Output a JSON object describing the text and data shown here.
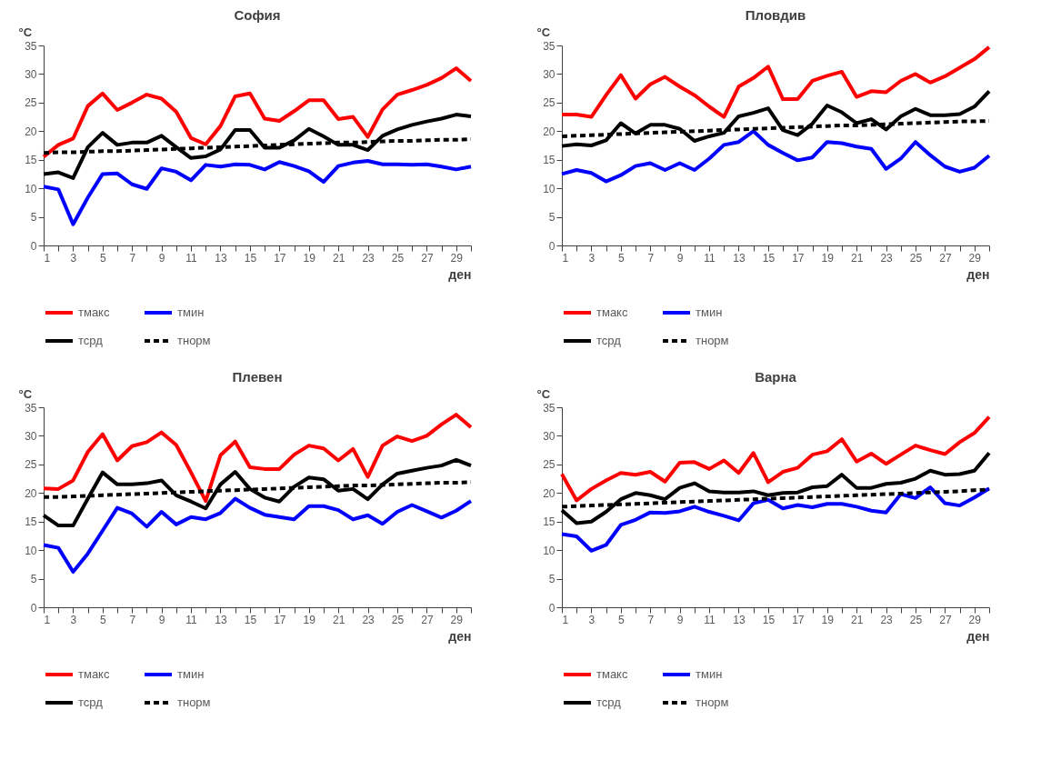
{
  "chart_data": [
    {
      "type": "line",
      "title": "София",
      "xlabel": "ден",
      "ylabel": "°C",
      "legend": "bottom",
      "x": [
        1,
        2,
        3,
        4,
        5,
        6,
        7,
        8,
        9,
        10,
        11,
        12,
        13,
        14,
        15,
        16,
        17,
        18,
        19,
        20,
        21,
        22,
        23,
        24,
        25,
        26,
        27,
        28,
        29,
        30
      ],
      "xlim": [
        1,
        30
      ],
      "xticks": [
        1,
        {
          "value": 2,
          "label": null
        },
        3,
        {
          "value": 4,
          "label": null
        },
        5,
        {
          "value": 6,
          "label": null
        },
        7,
        {
          "value": 8,
          "label": null
        },
        9,
        {
          "value": 10,
          "label": null
        },
        11,
        {
          "value": 12,
          "label": null
        },
        13,
        {
          "value": 14,
          "label": null
        },
        15,
        {
          "value": 16,
          "label": null
        },
        17,
        {
          "value": 18,
          "label": null
        },
        19,
        {
          "value": 20,
          "label": null
        },
        21,
        {
          "value": 22,
          "label": null
        },
        23,
        {
          "value": 24,
          "label": null
        },
        25,
        {
          "value": 26,
          "label": null
        },
        27,
        {
          "value": 28,
          "label": null
        },
        29,
        {
          "value": 30,
          "label": null
        }
      ],
      "ylim": [
        0,
        35
      ],
      "yticks": [
        0,
        5,
        10,
        15,
        20,
        25,
        30,
        35
      ],
      "series": [
        {
          "name": "тмакс",
          "color": "#ff0000",
          "line_style": "solid",
          "values": [
            15.5,
            17.6,
            18.7,
            24.4,
            26.6,
            23.7,
            25,
            26.4,
            25.7,
            23.4,
            18.8,
            17.7,
            20.9,
            26.1,
            26.6,
            22.2,
            21.8,
            23.5,
            25.4,
            25.4,
            22.1,
            22.5,
            19,
            23.8,
            26.4,
            27.2,
            28.1,
            29.3,
            31,
            28.8
          ]
        },
        {
          "name": "тмин",
          "color": "#0000ff",
          "line_style": "solid",
          "values": [
            10.3,
            9.8,
            3.7,
            8.4,
            12.5,
            12.6,
            10.7,
            9.9,
            13.5,
            12.9,
            11.4,
            14.1,
            13.8,
            14.2,
            14.1,
            13.3,
            14.6,
            13.9,
            13,
            11.1,
            13.9,
            14.5,
            14.8,
            14.2,
            14.2,
            14.1,
            14.2,
            13.8,
            13.3,
            13.8
          ]
        },
        {
          "name": "тсрд",
          "color": "#000000",
          "line_style": "solid",
          "values": [
            12.5,
            12.8,
            11.8,
            17.2,
            19.7,
            17.6,
            18,
            18,
            19.2,
            17.2,
            15.3,
            15.6,
            16.8,
            20.2,
            20.2,
            17.1,
            17.1,
            18.4,
            20.4,
            19.1,
            17.6,
            17.6,
            16.7,
            19.2,
            20.3,
            21.1,
            21.7,
            22.2,
            22.9,
            22.6
          ]
        },
        {
          "name": "тнорм",
          "color": "#000000",
          "line_style": "dashed",
          "values": [
            16.2,
            16.3,
            16.3,
            16.4,
            16.5,
            16.5,
            16.6,
            16.7,
            16.8,
            16.9,
            17,
            17.1,
            17.2,
            17.3,
            17.4,
            17.5,
            17.6,
            17.7,
            17.8,
            17.9,
            18,
            18,
            18.1,
            18.2,
            18.3,
            18.3,
            18.4,
            18.5,
            18.5,
            18.6
          ]
        }
      ]
    },
    {
      "type": "line",
      "title": "Пловдив",
      "xlabel": "ден",
      "ylabel": "°C",
      "legend": "bottom",
      "x": [
        1,
        2,
        3,
        4,
        5,
        6,
        7,
        8,
        9,
        10,
        11,
        12,
        13,
        14,
        15,
        16,
        17,
        18,
        19,
        20,
        21,
        22,
        23,
        24,
        25,
        26,
        27,
        28,
        29,
        30
      ],
      "xlim": [
        1,
        30
      ],
      "xticks": [
        1,
        {
          "value": 2,
          "label": null
        },
        3,
        {
          "value": 4,
          "label": null
        },
        5,
        {
          "value": 6,
          "label": null
        },
        7,
        {
          "value": 8,
          "label": null
        },
        9,
        {
          "value": 10,
          "label": null
        },
        11,
        {
          "value": 12,
          "label": null
        },
        13,
        {
          "value": 14,
          "label": null
        },
        15,
        {
          "value": 16,
          "label": null
        },
        17,
        {
          "value": 18,
          "label": null
        },
        19,
        {
          "value": 20,
          "label": null
        },
        21,
        {
          "value": 22,
          "label": null
        },
        23,
        {
          "value": 24,
          "label": null
        },
        25,
        {
          "value": 26,
          "label": null
        },
        27,
        {
          "value": 28,
          "label": null
        },
        29,
        {
          "value": 30,
          "label": null
        }
      ],
      "ylim": [
        0,
        35
      ],
      "yticks": [
        0,
        5,
        10,
        15,
        20,
        25,
        30,
        35
      ],
      "series": [
        {
          "name": "тмакс",
          "color": "#ff0000",
          "line_style": "solid",
          "values": [
            22.9,
            22.9,
            22.5,
            26.3,
            29.8,
            25.7,
            28.2,
            29.5,
            27.8,
            26.3,
            24.3,
            22.5,
            27.8,
            29.3,
            31.3,
            25.6,
            25.6,
            28.8,
            29.7,
            30.4,
            26,
            27,
            26.8,
            28.8,
            30,
            28.5,
            29.6,
            31.1,
            32.6,
            34.7
          ]
        },
        {
          "name": "тмин",
          "color": "#0000ff",
          "line_style": "solid",
          "values": [
            12.5,
            13.2,
            12.7,
            11.2,
            12.3,
            13.9,
            14.4,
            13.2,
            14.4,
            13.2,
            15.2,
            17.6,
            18.1,
            20,
            17.6,
            16.2,
            14.9,
            15.4,
            18.1,
            17.9,
            17.3,
            16.9,
            13.4,
            15.2,
            18.1,
            15.8,
            13.8,
            12.9,
            13.6,
            15.7
          ]
        },
        {
          "name": "тсрд",
          "color": "#000000",
          "line_style": "solid",
          "values": [
            17.4,
            17.7,
            17.5,
            18.4,
            21.4,
            19.6,
            21.1,
            21.1,
            20.4,
            18.3,
            19.1,
            19.7,
            22.6,
            23.2,
            24,
            20.2,
            19.3,
            21.3,
            24.5,
            23.3,
            21.4,
            22.1,
            20.3,
            22.6,
            23.9,
            22.8,
            22.8,
            23,
            24.3,
            27
          ]
        },
        {
          "name": "тнорм",
          "color": "#000000",
          "line_style": "dashed",
          "values": [
            19.1,
            19.2,
            19.3,
            19.4,
            19.5,
            19.6,
            19.7,
            19.8,
            19.9,
            20,
            20.1,
            20.2,
            20.3,
            20.4,
            20.5,
            20.6,
            20.7,
            20.8,
            20.9,
            21,
            21,
            21.1,
            21.2,
            21.3,
            21.4,
            21.5,
            21.6,
            21.7,
            21.7,
            21.8
          ]
        }
      ]
    },
    {
      "type": "line",
      "title": "Плевен",
      "xlabel": "ден",
      "ylabel": "°C",
      "legend": "bottom",
      "x": [
        1,
        2,
        3,
        4,
        5,
        6,
        7,
        8,
        9,
        10,
        11,
        12,
        13,
        14,
        15,
        16,
        17,
        18,
        19,
        20,
        21,
        22,
        23,
        24,
        25,
        26,
        27,
        28,
        29,
        30
      ],
      "xlim": [
        1,
        30
      ],
      "xticks": [
        1,
        {
          "value": 2,
          "label": null
        },
        3,
        {
          "value": 4,
          "label": null
        },
        5,
        {
          "value": 6,
          "label": null
        },
        7,
        {
          "value": 8,
          "label": null
        },
        9,
        {
          "value": 10,
          "label": null
        },
        11,
        {
          "value": 12,
          "label": null
        },
        13,
        {
          "value": 14,
          "label": null
        },
        15,
        {
          "value": 16,
          "label": null
        },
        17,
        {
          "value": 18,
          "label": null
        },
        19,
        {
          "value": 20,
          "label": null
        },
        21,
        {
          "value": 22,
          "label": null
        },
        23,
        {
          "value": 24,
          "label": null
        },
        25,
        {
          "value": 26,
          "label": null
        },
        27,
        {
          "value": 28,
          "label": null
        },
        29,
        {
          "value": 30,
          "label": null
        }
      ],
      "ylim": [
        0,
        35
      ],
      "yticks": [
        0,
        5,
        10,
        15,
        20,
        25,
        30,
        35
      ],
      "series": [
        {
          "name": "тмакс",
          "color": "#ff0000",
          "line_style": "solid",
          "values": [
            20.8,
            20.7,
            22.2,
            27.2,
            30.3,
            25.7,
            28.2,
            28.9,
            30.6,
            28.4,
            23.6,
            18.6,
            26.6,
            29,
            24.5,
            24.2,
            24.2,
            26.7,
            28.3,
            27.8,
            25.7,
            27.7,
            22.8,
            28.3,
            29.9,
            29.1,
            30,
            32,
            33.7,
            31.5
          ]
        },
        {
          "name": "тмин",
          "color": "#0000ff",
          "line_style": "solid",
          "values": [
            10.9,
            10.4,
            6.2,
            9.4,
            13.4,
            17.4,
            16.4,
            14.1,
            16.7,
            14.5,
            15.8,
            15.4,
            16.5,
            19,
            17.4,
            16.2,
            15.8,
            15.4,
            17.7,
            17.7,
            17,
            15.4,
            16.1,
            14.6,
            16.7,
            17.9,
            16.8,
            15.7,
            16.9,
            18.6
          ]
        },
        {
          "name": "тсрд",
          "color": "#000000",
          "line_style": "solid",
          "values": [
            16.1,
            14.3,
            14.3,
            19,
            23.6,
            21.5,
            21.5,
            21.7,
            22.2,
            19.6,
            18.5,
            17.3,
            21.5,
            23.7,
            20.7,
            19.2,
            18.5,
            21.1,
            22.7,
            22.4,
            20.4,
            20.7,
            18.9,
            21.5,
            23.4,
            23.9,
            24.4,
            24.8,
            25.8,
            24.8
          ]
        },
        {
          "name": "тнорм",
          "color": "#000000",
          "line_style": "dashed",
          "values": [
            19.3,
            19.3,
            19.4,
            19.5,
            19.6,
            19.7,
            19.8,
            19.9,
            20,
            20.1,
            20.2,
            20.3,
            20.4,
            20.5,
            20.6,
            20.7,
            20.8,
            20.9,
            21,
            21.1,
            21.2,
            21.3,
            21.3,
            21.4,
            21.5,
            21.6,
            21.7,
            21.8,
            21.8,
            21.9
          ]
        }
      ]
    },
    {
      "type": "line",
      "title": "Варна",
      "xlabel": "ден",
      "ylabel": "°C",
      "legend": "bottom",
      "x": [
        1,
        2,
        3,
        4,
        5,
        6,
        7,
        8,
        9,
        10,
        11,
        12,
        13,
        14,
        15,
        16,
        17,
        18,
        19,
        20,
        21,
        22,
        23,
        24,
        25,
        26,
        27,
        28,
        29,
        30
      ],
      "xlim": [
        1,
        30
      ],
      "xticks": [
        1,
        {
          "value": 2,
          "label": null
        },
        3,
        {
          "value": 4,
          "label": null
        },
        5,
        {
          "value": 6,
          "label": null
        },
        7,
        {
          "value": 8,
          "label": null
        },
        9,
        {
          "value": 10,
          "label": null
        },
        11,
        {
          "value": 12,
          "label": null
        },
        13,
        {
          "value": 14,
          "label": null
        },
        15,
        {
          "value": 16,
          "label": null
        },
        17,
        {
          "value": 18,
          "label": null
        },
        19,
        {
          "value": 20,
          "label": null
        },
        21,
        {
          "value": 22,
          "label": null
        },
        23,
        {
          "value": 24,
          "label": null
        },
        25,
        {
          "value": 26,
          "label": null
        },
        27,
        {
          "value": 28,
          "label": null
        },
        29,
        {
          "value": 30,
          "label": null
        }
      ],
      "ylim": [
        0,
        35
      ],
      "yticks": [
        0,
        5,
        10,
        15,
        20,
        25,
        30,
        35
      ],
      "series": [
        {
          "name": "тмакс",
          "color": "#ff0000",
          "line_style": "solid",
          "values": [
            23.3,
            18.7,
            20.7,
            22.2,
            23.5,
            23.2,
            23.7,
            22,
            25.3,
            25.4,
            24.2,
            25.7,
            23.5,
            27,
            21.9,
            23.7,
            24.4,
            26.7,
            27.3,
            29.4,
            25.5,
            26.9,
            25.1,
            26.7,
            28.3,
            27.5,
            26.8,
            28.9,
            30.5,
            33.3
          ]
        },
        {
          "name": "тмин",
          "color": "#0000ff",
          "line_style": "solid",
          "values": [
            12.8,
            12.4,
            9.9,
            10.9,
            14.4,
            15.3,
            16.6,
            16.5,
            16.8,
            17.6,
            16.7,
            16,
            15.2,
            18.2,
            18.8,
            17.3,
            17.9,
            17.5,
            18.1,
            18.1,
            17.6,
            16.9,
            16.6,
            19.8,
            19.1,
            21,
            18.2,
            17.8,
            19.2,
            20.8
          ]
        },
        {
          "name": "тсрд",
          "color": "#000000",
          "line_style": "solid",
          "values": [
            17,
            14.7,
            15,
            16.7,
            18.9,
            20,
            19.6,
            18.9,
            20.9,
            21.7,
            20.3,
            20.1,
            20.1,
            20.3,
            19.6,
            20,
            20.1,
            21,
            21.2,
            23.2,
            20.9,
            20.9,
            21.6,
            21.8,
            22.5,
            23.9,
            23.2,
            23.3,
            23.9,
            27
          ]
        },
        {
          "name": "тнорм",
          "color": "#000000",
          "line_style": "dashed",
          "values": [
            17.6,
            17.7,
            17.8,
            17.9,
            18,
            18.1,
            18.2,
            18.3,
            18.4,
            18.5,
            18.6,
            18.7,
            18.8,
            18.9,
            19,
            19.1,
            19.2,
            19.3,
            19.4,
            19.5,
            19.6,
            19.7,
            19.8,
            19.9,
            20,
            20.1,
            20.2,
            20.3,
            20.5,
            20.6
          ]
        }
      ]
    }
  ]
}
